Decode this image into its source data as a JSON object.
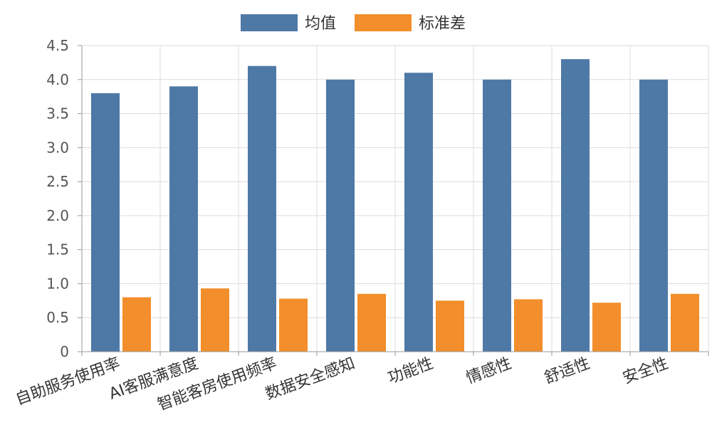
{
  "chart_data": {
    "type": "bar",
    "title": "",
    "xlabel": "",
    "ylabel": "",
    "categories": [
      "自助服务使用率",
      "AI客服满意度",
      "智能客房使用频率",
      "数据安全感知",
      "功能性",
      "情感性",
      "舒适性",
      "安全性"
    ],
    "series": [
      {
        "name": "均值",
        "color": "#4e79a7",
        "values": [
          3.8,
          3.9,
          4.2,
          4.0,
          4.1,
          4.0,
          4.3,
          4.0
        ]
      },
      {
        "name": "标准差",
        "color": "#f28e2b",
        "values": [
          0.8,
          0.93,
          0.78,
          0.85,
          0.75,
          0.77,
          0.72,
          0.85
        ]
      }
    ],
    "ylim": [
      0,
      4.5
    ],
    "yticks": [
      0,
      0.5,
      1.0,
      1.5,
      2.0,
      2.5,
      3.0,
      3.5,
      4.0,
      4.5
    ],
    "ytick_labels": [
      "0",
      "0.5",
      "1.0",
      "1.5",
      "2.0",
      "2.5",
      "3.0",
      "3.5",
      "4.0",
      "4.5"
    ],
    "grid": true,
    "legend_position": "top-center"
  }
}
